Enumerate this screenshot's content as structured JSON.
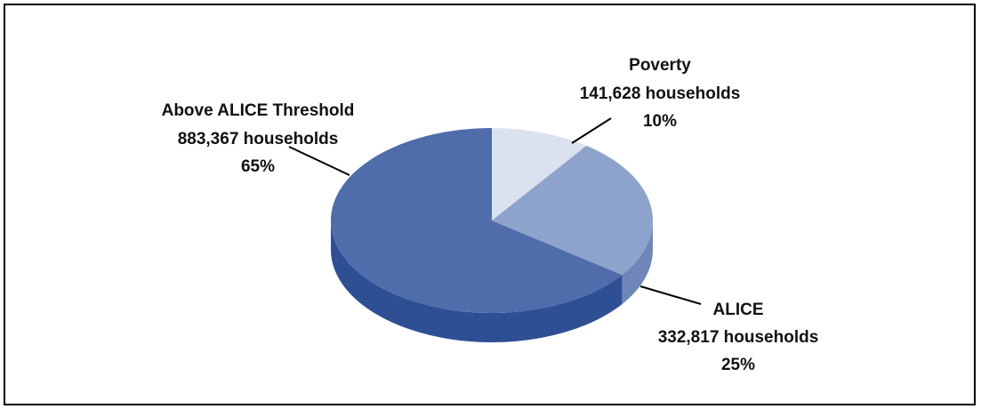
{
  "chart_data": {
    "type": "pie",
    "style": "3d",
    "title": "",
    "slices": [
      {
        "label": "Above ALICE Threshold",
        "count": "883,367 households",
        "percent_label": "65%",
        "value": 65,
        "color": "#4f6daa",
        "side_color": "#2f4f95"
      },
      {
        "label": "ALICE",
        "count": "332,817 households",
        "percent_label": "25%",
        "value": 25,
        "color": "#8ea3cb",
        "side_color": "#6f86b9"
      },
      {
        "label": "Poverty",
        "count": "141,628 households",
        "percent_label": "10%",
        "value": 10,
        "color": "#dbe1ef",
        "side_color": "#b9c4dc"
      }
    ]
  }
}
